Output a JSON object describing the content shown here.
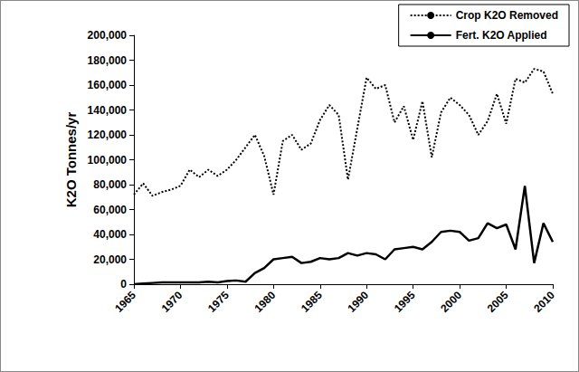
{
  "chart_data": {
    "type": "line",
    "y_label": "K2O Tonnes/yr",
    "x": [
      1965,
      1966,
      1967,
      1968,
      1969,
      1970,
      1971,
      1972,
      1973,
      1974,
      1975,
      1976,
      1977,
      1978,
      1979,
      1980,
      1981,
      1982,
      1983,
      1984,
      1985,
      1986,
      1987,
      1988,
      1989,
      1990,
      1991,
      1992,
      1993,
      1994,
      1995,
      1996,
      1997,
      1998,
      1999,
      2000,
      2001,
      2002,
      2003,
      2004,
      2005,
      2006,
      2007,
      2008,
      2009,
      2010
    ],
    "series": [
      {
        "name": "Crop K2O Removed",
        "color": "#000000",
        "line_style": "dotted",
        "marker": "none",
        "values": [
          72000,
          81000,
          71000,
          74000,
          76000,
          79000,
          92000,
          86000,
          92000,
          87000,
          92000,
          100000,
          110000,
          120000,
          103000,
          72000,
          115000,
          120000,
          108000,
          113000,
          132000,
          144000,
          136000,
          84000,
          125000,
          166000,
          157000,
          160000,
          130000,
          143000,
          116000,
          147000,
          102000,
          138000,
          150000,
          144000,
          136000,
          120000,
          131000,
          153000,
          129000,
          165000,
          162000,
          173000,
          171000,
          153000
        ]
      },
      {
        "name": "Fert. K2O Applied",
        "color": "#000000",
        "line_style": "solid",
        "marker": "none",
        "values": [
          0,
          500,
          1000,
          1500,
          1500,
          1500,
          1500,
          1500,
          2000,
          1500,
          2500,
          3000,
          2000,
          9000,
          13000,
          20000,
          21000,
          22000,
          17000,
          18000,
          21000,
          20000,
          21000,
          25000,
          23000,
          25000,
          24000,
          20000,
          28000,
          29000,
          30000,
          28000,
          34000,
          42000,
          43000,
          42000,
          35000,
          37000,
          49000,
          45000,
          48000,
          28000,
          79000,
          17000,
          49000,
          34000
        ]
      }
    ],
    "xlim": [
      1965,
      2010
    ],
    "xticks": [
      1965,
      1970,
      1975,
      1980,
      1985,
      1990,
      1995,
      2000,
      2005,
      2010
    ],
    "ylim": [
      0,
      200000
    ],
    "yticks": [
      0,
      {
        "value": 20000,
        "label": "20,000"
      },
      {
        "value": 40000,
        "label": "40,000"
      },
      {
        "value": 60000,
        "label": "60,000"
      },
      {
        "value": 80000,
        "label": "80,000"
      },
      {
        "value": 100000,
        "label": "100,000"
      },
      {
        "value": 120000,
        "label": "120,000"
      },
      {
        "value": 140000,
        "label": "140,000"
      },
      {
        "value": 160000,
        "label": "160,000"
      },
      {
        "value": 180000,
        "label": "180,000"
      },
      {
        "value": 200000,
        "label": "200,000"
      }
    ],
    "grid": false,
    "legend": "upper right"
  }
}
